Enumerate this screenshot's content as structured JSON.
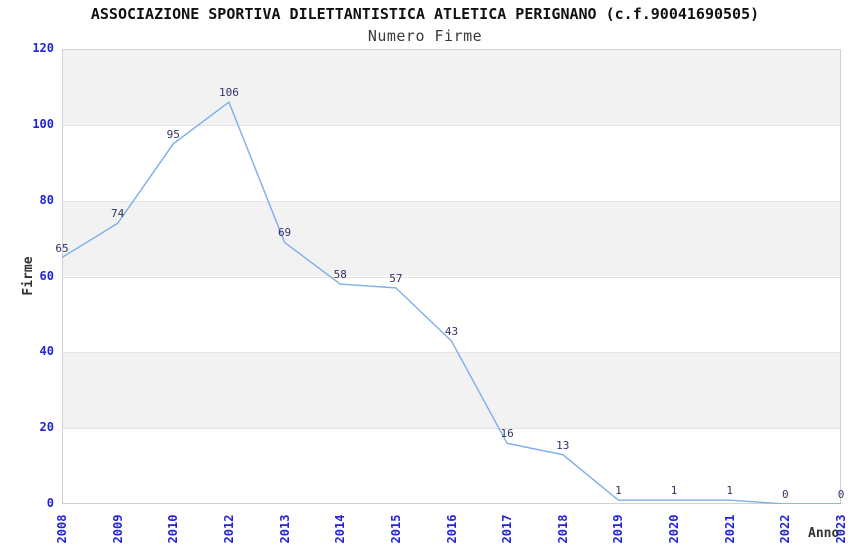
{
  "header": {
    "title": "ASSOCIAZIONE SPORTIVA DILETTANTISTICA ATLETICA PERIGNANO (c.f.90041690505)",
    "subtitle": "Numero Firme"
  },
  "chart_data": {
    "type": "line",
    "title": "ASSOCIAZIONE SPORTIVA DILETTANTISTICA ATLETICA PERIGNANO (c.f.90041690505)",
    "subtitle": "Numero Firme",
    "categories": [
      "2008",
      "2009",
      "2010",
      "2012",
      "2013",
      "2014",
      "2015",
      "2016",
      "2017",
      "2018",
      "2019",
      "2020",
      "2021",
      "2022",
      "2023"
    ],
    "values": [
      65,
      74,
      95,
      106,
      69,
      58,
      57,
      43,
      16,
      13,
      1,
      1,
      1,
      0,
      0
    ],
    "data_labels_visible": true,
    "xlabel": "Anno",
    "ylabel": "Firme",
    "ylim": [
      0,
      120
    ],
    "yticks": [
      0,
      20,
      40,
      60,
      80,
      100,
      120
    ],
    "grid": "horizontal-bands-alternating",
    "legend_position": "none",
    "colors": {
      "line": "#7dafe8",
      "tick_label": "#2222dd",
      "data_label": "#333366",
      "band_gray": "#f2f2f3",
      "band_white": "#ffffff",
      "grid_line": "#e4e4e4",
      "plot_border": "#d2d2d2",
      "title": "#111111",
      "axis_title": "#333333"
    }
  }
}
